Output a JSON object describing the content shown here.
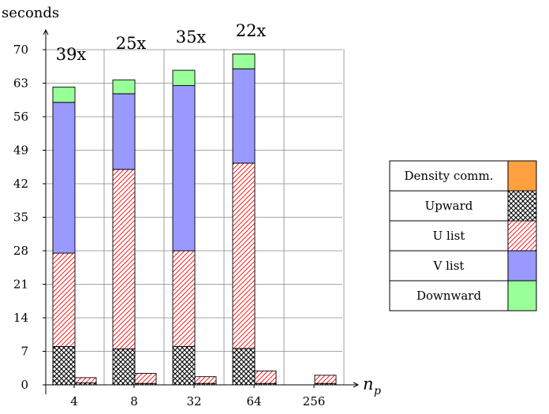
{
  "chart_data": {
    "type": "bar",
    "stacked": true,
    "ylabel": "seconds",
    "xlabel": "n",
    "xlabel_subscript": "p",
    "ylim": [
      0,
      70
    ],
    "yticks": [
      0,
      7,
      14,
      21,
      28,
      35,
      42,
      49,
      56,
      63,
      70
    ],
    "grid": true,
    "legend_position": "right",
    "categories": [
      "4",
      "8",
      "32",
      "64",
      "256"
    ],
    "bar_groups": [
      {
        "category": "4",
        "annotation": "39x",
        "left": [
          {
            "series": "Upward",
            "value": 8
          },
          {
            "series": "U list",
            "value": 19.5
          },
          {
            "series": "V list",
            "value": 31.5
          },
          {
            "series": "Downward",
            "value": 3.2
          }
        ],
        "right": [
          {
            "series": "Upward",
            "value": 0.4
          },
          {
            "series": "U list",
            "value": 1.1
          }
        ]
      },
      {
        "category": "8",
        "annotation": "25x",
        "left": [
          {
            "series": "Upward",
            "value": 7.5
          },
          {
            "series": "U list",
            "value": 37.5
          },
          {
            "series": "V list",
            "value": 15.8
          },
          {
            "series": "Downward",
            "value": 2.9
          }
        ],
        "right": [
          {
            "series": "Upward",
            "value": 0.3
          },
          {
            "series": "U list",
            "value": 2.1
          }
        ]
      },
      {
        "category": "32",
        "annotation": "35x",
        "left": [
          {
            "series": "Upward",
            "value": 8
          },
          {
            "series": "U list",
            "value": 20
          },
          {
            "series": "V list",
            "value": 34.5
          },
          {
            "series": "Downward",
            "value": 3.2
          }
        ],
        "right": [
          {
            "series": "Upward",
            "value": 0.3
          },
          {
            "series": "U list",
            "value": 1.4
          }
        ]
      },
      {
        "category": "64",
        "annotation": "22x",
        "left": [
          {
            "series": "Upward",
            "value": 7.6
          },
          {
            "series": "U list",
            "value": 38.7
          },
          {
            "series": "V list",
            "value": 19.7
          },
          {
            "series": "Downward",
            "value": 3.1
          }
        ],
        "right": [
          {
            "series": "Upward",
            "value": 0.3
          },
          {
            "series": "U list",
            "value": 2.6
          }
        ]
      },
      {
        "category": "256",
        "annotation": "",
        "left": [],
        "right": [
          {
            "series": "Upward",
            "value": 0.3
          },
          {
            "series": "U list",
            "value": 1.7
          }
        ]
      }
    ],
    "series": [
      {
        "name": "Density comm.",
        "color": "#ffa040",
        "pattern": "solid"
      },
      {
        "name": "Upward",
        "color": "#000000",
        "pattern": "crosshatch"
      },
      {
        "name": "U list",
        "color": "#ff0000",
        "pattern": "diagonal"
      },
      {
        "name": "V list",
        "color": "#9999ff",
        "pattern": "solid"
      },
      {
        "name": "Downward",
        "color": "#99ff99",
        "pattern": "solid"
      }
    ]
  }
}
